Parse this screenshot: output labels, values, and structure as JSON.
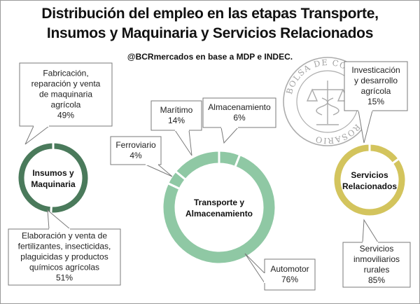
{
  "header": {
    "title_line1": "Distribución del empleo en las etapas Transporte,",
    "title_line2": "Insumos y Maquinaria y Servicios Relacionados",
    "subtitle": "@BCRmercados en base a MDP e INDEC."
  },
  "seal": {
    "ring_text": "BOLSA DE COMERCIO DE ROSARIO"
  },
  "chart_data": [
    {
      "type": "pie",
      "title": "Insumos y Maquinaria",
      "color": "#4a7a5b",
      "slices": [
        {
          "lines": [
            "Fabricación,",
            "reparación y venta",
            "de maquinaria",
            "agrícola"
          ],
          "pct_label": "49%",
          "value": 49
        },
        {
          "lines": [
            "Elaboración y venta de",
            "fertilizantes, insecticidas,",
            "plaguicidas y productos",
            "químicos agrícolas"
          ],
          "pct_label": "51%",
          "value": 51
        }
      ]
    },
    {
      "type": "pie",
      "title": "Transporte y Almacenamiento",
      "color": "#8fc8a4",
      "slices": [
        {
          "lines": [
            "Almacenamiento"
          ],
          "pct_label": "6%",
          "value": 6
        },
        {
          "lines": [
            "Automotor"
          ],
          "pct_label": "76%",
          "value": 76
        },
        {
          "lines": [
            "Ferroviario"
          ],
          "pct_label": "4%",
          "value": 4
        },
        {
          "lines": [
            "Marítimo"
          ],
          "pct_label": "14%",
          "value": 14
        }
      ]
    },
    {
      "type": "pie",
      "title": "Servicios Relacionados",
      "color": "#d3c45d",
      "slices": [
        {
          "lines": [
            "Investicación",
            "y desarrollo",
            "agrícola"
          ],
          "pct_label": "15%",
          "value": 15
        },
        {
          "lines": [
            "Servicios",
            "inmoviliarios",
            "rurales"
          ],
          "pct_label": "85%",
          "value": 85
        }
      ]
    }
  ]
}
